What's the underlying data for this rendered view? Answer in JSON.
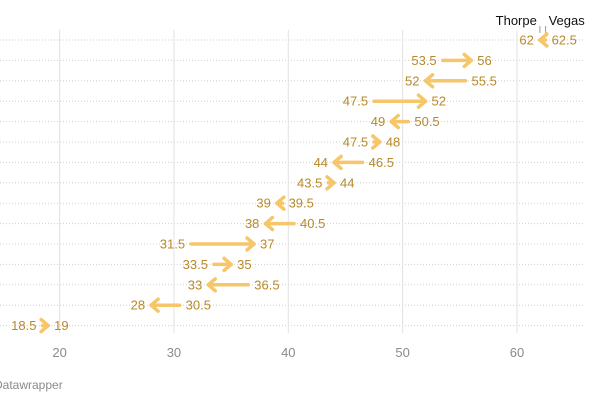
{
  "chart_data": {
    "type": "arrow",
    "series": [
      {
        "name": "Thorpe"
      },
      {
        "name": "Vegas"
      }
    ],
    "rows": [
      {
        "from": 62.5,
        "to": 62
      },
      {
        "from": 53.5,
        "to": 56
      },
      {
        "from": 55.5,
        "to": 52
      },
      {
        "from": 47.5,
        "to": 52
      },
      {
        "from": 50.5,
        "to": 49
      },
      {
        "from": 47.5,
        "to": 48
      },
      {
        "from": 46.5,
        "to": 44
      },
      {
        "from": 43.5,
        "to": 44
      },
      {
        "from": 39.5,
        "to": 39
      },
      {
        "from": 40.5,
        "to": 38
      },
      {
        "from": 31.5,
        "to": 37
      },
      {
        "from": 33.5,
        "to": 35
      },
      {
        "from": 36.5,
        "to": 33
      },
      {
        "from": 30.5,
        "to": 28
      },
      {
        "from": 18.5,
        "to": 19
      }
    ],
    "xticks": [
      20,
      30,
      40,
      50,
      60
    ],
    "xlim": [
      15,
      66
    ],
    "grid": true,
    "arrow_color": "#f6c66a",
    "label_color": "#b8892a"
  },
  "credit": "Datawrapper"
}
